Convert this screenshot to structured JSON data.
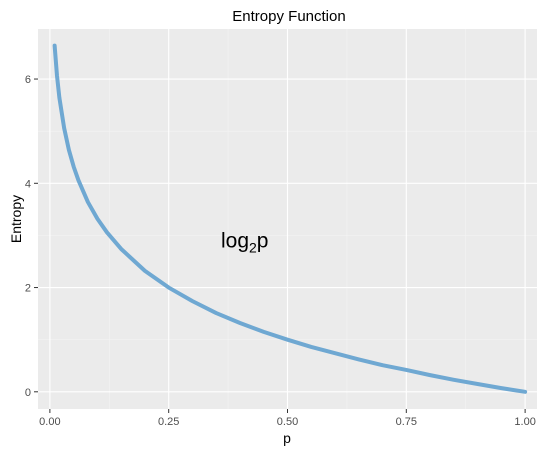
{
  "chart_data": {
    "type": "line",
    "title": "Entropy Function",
    "xlabel": "p",
    "ylabel": "Entropy",
    "xlim": [
      -0.025,
      1.025
    ],
    "ylim": [
      -0.33,
      6.96
    ],
    "x_ticks": [
      0,
      0.25,
      0.5,
      0.75,
      1
    ],
    "x_tick_labels": [
      "0.00",
      "0.25",
      "0.50",
      "0.75",
      "1.00"
    ],
    "y_ticks": [
      0,
      2,
      4,
      6
    ],
    "y_tick_labels": [
      "0",
      "2",
      "4",
      "6"
    ],
    "grid": true,
    "legend": "none",
    "annotation": {
      "base": "log",
      "subscript": "2",
      "suffix": "p",
      "x": 0.41,
      "y": 2.9
    },
    "series": [
      {
        "color": "#6fa8d2",
        "x": [
          0.01,
          0.015,
          0.02,
          0.03,
          0.04,
          0.05,
          0.06,
          0.08,
          0.1,
          0.12,
          0.15,
          0.2,
          0.25,
          0.3,
          0.35,
          0.4,
          0.45,
          0.5,
          0.55,
          0.6,
          0.65,
          0.7,
          0.75,
          0.8,
          0.85,
          0.9,
          0.95,
          1.0
        ],
        "y": [
          6.64,
          6.06,
          5.64,
          5.06,
          4.64,
          4.32,
          4.06,
          3.64,
          3.32,
          3.06,
          2.74,
          2.32,
          2.0,
          1.74,
          1.51,
          1.32,
          1.15,
          1.0,
          0.86,
          0.74,
          0.62,
          0.51,
          0.42,
          0.32,
          0.23,
          0.15,
          0.07,
          0.0
        ]
      }
    ],
    "colors": {
      "panel": "#ebebeb",
      "grid_major": "#ffffff",
      "grid_minor": "#f4f4f4",
      "tick": "#333333"
    }
  }
}
